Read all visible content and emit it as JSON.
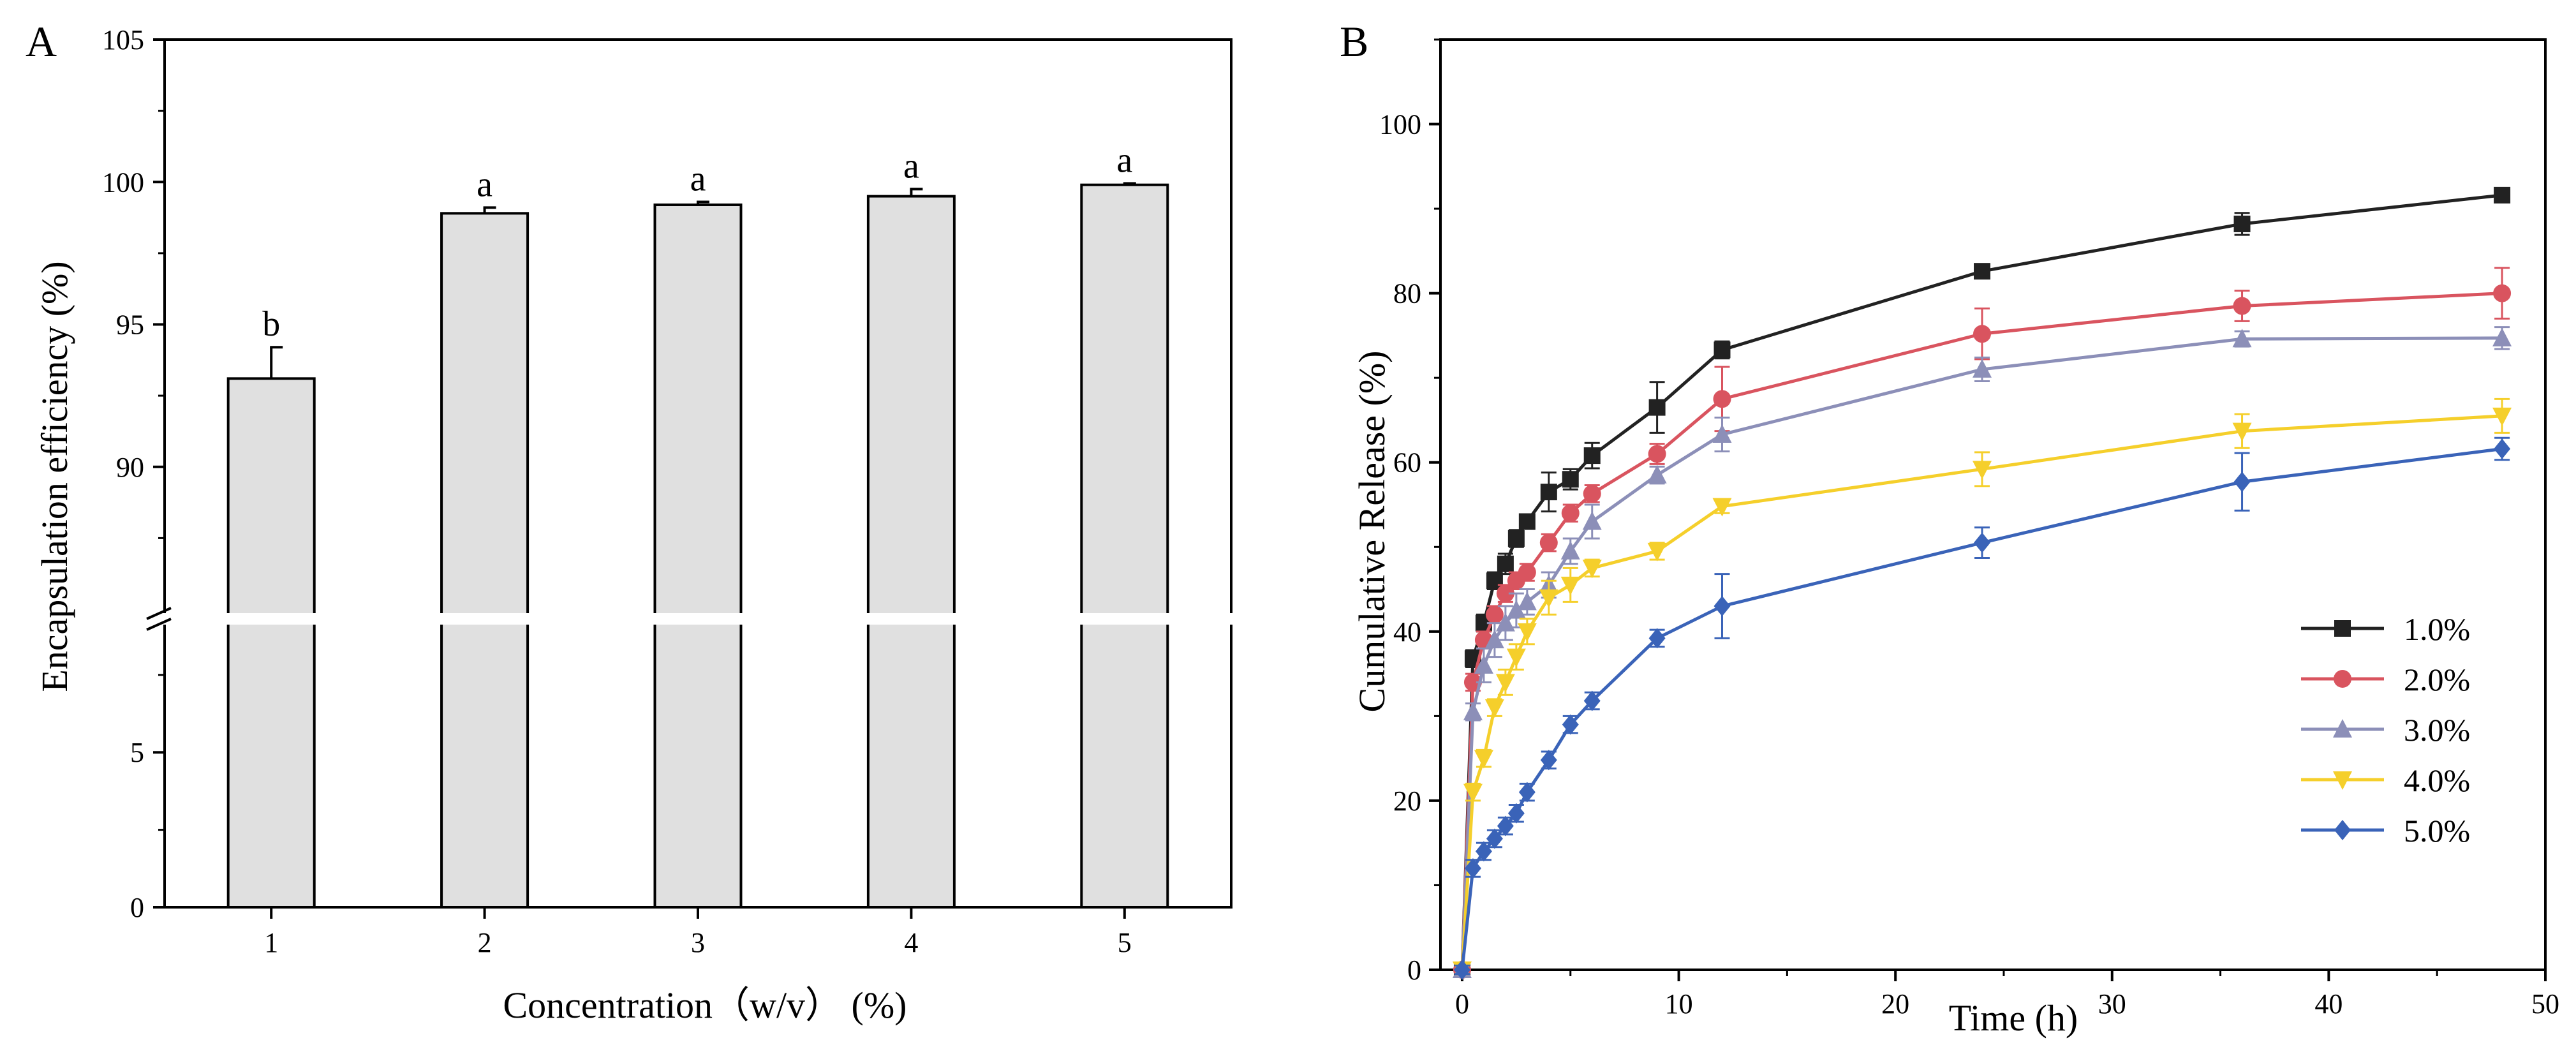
{
  "chart_data": [
    {
      "panel_label": "A",
      "type": "bar",
      "categories": [
        "1",
        "2",
        "3",
        "4",
        "5"
      ],
      "values": [
        93.1,
        98.9,
        99.2,
        99.5,
        99.9
      ],
      "errors": [
        1.1,
        0.2,
        0.1,
        0.25,
        0.05
      ],
      "significance_letters": [
        "b",
        "a",
        "a",
        "a",
        "a"
      ],
      "xlabel": "Concentration（w/v） (%)",
      "ylabel": "Encapsulation efficiency (%)",
      "y_axis_break": true,
      "ylim_lower": [
        0,
        9
      ],
      "ylim_upper": [
        85,
        105
      ],
      "yticks_lower": [
        "0",
        "5"
      ],
      "yticks_upper": [
        "90",
        "95",
        "100",
        "105"
      ],
      "bar_color": "#e0e0e0",
      "grid": false
    },
    {
      "panel_label": "B",
      "type": "line",
      "xlabel": "Time (h)",
      "ylabel": "Cumulative Release (%)",
      "xlim": [
        -1,
        50
      ],
      "ylim": [
        0,
        110
      ],
      "xticks": [
        "0",
        "10",
        "20",
        "30",
        "40",
        "50"
      ],
      "yticks": [
        "0",
        "20",
        "40",
        "60",
        "80",
        "100"
      ],
      "legend_position": "bottom-right",
      "grid": false,
      "x": [
        0,
        0.5,
        1,
        1.5,
        2,
        2.5,
        3,
        4,
        5,
        6,
        9,
        12,
        24,
        36,
        48
      ],
      "series": [
        {
          "name": "1.0%",
          "color": "#222222",
          "marker": "square",
          "values": [
            0,
            36.8,
            41,
            46,
            48,
            51,
            53,
            56.5,
            58,
            60.8,
            66.5,
            73.3,
            82.6,
            88.2,
            91.6
          ],
          "errors": [
            0.5,
            1,
            1,
            1,
            1.2,
            1,
            0.8,
            2.3,
            1.2,
            1.5,
            3,
            1,
            0.6,
            1.3,
            0.8
          ]
        },
        {
          "name": "2.0%",
          "color": "#d9545f",
          "marker": "circle",
          "values": [
            0,
            34,
            39,
            42,
            44.5,
            46,
            47,
            50.5,
            54,
            56.3,
            61,
            67.5,
            75.2,
            78.5,
            80
          ],
          "errors": [
            0.5,
            1,
            1,
            1,
            1,
            1,
            1,
            1,
            1,
            1,
            1.2,
            3.8,
            3,
            1.8,
            3
          ]
        },
        {
          "name": "3.0%",
          "color": "#8c8fb8",
          "marker": "triangle-up",
          "values": [
            0,
            30.5,
            36,
            39,
            41,
            42.5,
            43.5,
            45.5,
            49.5,
            53,
            58.5,
            63.3,
            71,
            74.6,
            74.7
          ],
          "errors": [
            0.5,
            1,
            2,
            2,
            2,
            2,
            1.5,
            1.5,
            1.5,
            2,
            1,
            2,
            1.4,
            0.9,
            1.3
          ]
        },
        {
          "name": "4.0%",
          "color": "#f5cf2b",
          "marker": "triangle-down",
          "values": [
            0,
            21,
            25,
            31,
            34,
            37,
            40,
            44,
            45.5,
            47.5,
            49.5,
            54.8,
            59.2,
            63.7,
            65.5
          ],
          "errors": [
            0.5,
            1,
            1,
            1,
            1.5,
            1.5,
            1.5,
            2,
            2,
            1,
            1,
            0.8,
            2,
            2,
            2
          ]
        },
        {
          "name": "5.0%",
          "color": "#3a63b8",
          "marker": "diamond",
          "values": [
            0,
            12,
            14,
            15.5,
            17,
            18.5,
            21,
            24.8,
            29,
            31.8,
            39.2,
            43,
            50.5,
            57.7,
            61.6
          ],
          "errors": [
            0.5,
            1,
            1,
            1,
            1,
            1,
            1,
            1,
            1,
            1,
            1,
            3.8,
            1.8,
            3.4,
            1.3
          ]
        }
      ]
    }
  ]
}
